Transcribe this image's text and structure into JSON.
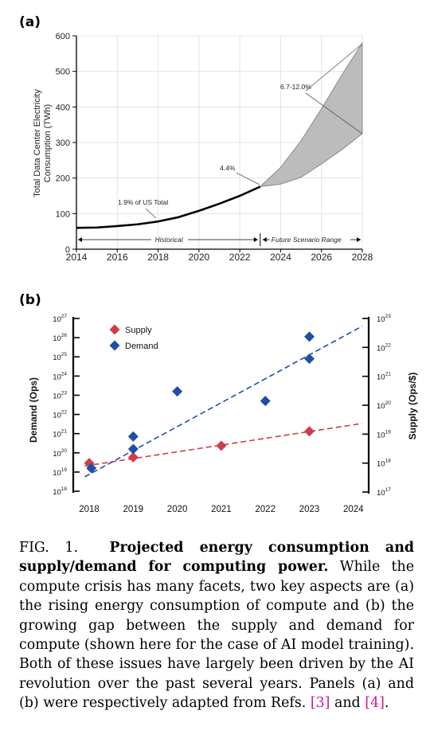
{
  "panel_a_label": "(a)",
  "panel_b_label": "(b)",
  "caption": {
    "fig_label": "FIG. 1.",
    "title": "Projected energy consumption and supply/demand for computing power.",
    "body": "While the compute crisis has many facets, two key aspects are (a) the rising energy consumption of compute and (b) the growing gap between the supply and demand for compute (shown here for the case of AI model training). Both of these issues have largely been driven by the AI revolution over the past several years. Panels (a) and (b) were respectively adapted from Refs.",
    "ref1": "[3]",
    "and_text": "and",
    "ref2": "[4]",
    "end": "."
  },
  "chart_data": [
    {
      "type": "line",
      "panel": "(a)",
      "ylabel": "Total Data Center Electricity Consumption (TWh)",
      "xlim": [
        2014,
        2028
      ],
      "ylim": [
        0,
        600
      ],
      "x_ticks": [
        "2014",
        "2016",
        "2018",
        "2020",
        "2022",
        "2024",
        "2026",
        "2028"
      ],
      "y_ticks": [
        "0",
        "100",
        "200",
        "300",
        "400",
        "500",
        "600"
      ],
      "grid": true,
      "series": [
        {
          "name": "Historical",
          "x": [
            2014,
            2015,
            2016,
            2017,
            2018,
            2019,
            2020,
            2021,
            2022,
            2023
          ],
          "y": [
            60,
            61,
            65,
            70,
            78,
            90,
            108,
            128,
            150,
            176
          ]
        }
      ],
      "range": {
        "x": [
          2023,
          2024,
          2025,
          2026,
          2027,
          2028
        ],
        "low": [
          176,
          183,
          202,
          240,
          280,
          325
        ],
        "high": [
          176,
          230,
          305,
          395,
          490,
          580
        ]
      },
      "annotations": [
        "1.9% of US Total",
        "4.4%",
        "6.7-12.0%"
      ],
      "periods": [
        "Historical",
        "Future Scenario Range"
      ]
    },
    {
      "type": "scatter",
      "panel": "(b)",
      "ylabel_left": "Demand (Ops)",
      "ylabel_right": "Supply (Ops/$)",
      "x_ticks": [
        "2018",
        "2019",
        "2020",
        "2021",
        "2022",
        "2023",
        "2024"
      ],
      "left_ticks_exp": [
        "27",
        "26",
        "25",
        "24",
        "23",
        "22",
        "21",
        "20",
        "19",
        "18"
      ],
      "right_ticks_exp": [
        "23",
        "22",
        "21",
        "20",
        "19",
        "18",
        "17"
      ],
      "left_ylim_log10": [
        18,
        27
      ],
      "right_ylim_log10": [
        17,
        23
      ],
      "legend": "top-left",
      "series": [
        {
          "name": "Supply",
          "color": "#d23b48",
          "axis": "right",
          "x": [
            2018.0,
            2019.0,
            2021.0,
            2023.0
          ],
          "y_log10": [
            18.0,
            18.2,
            18.6,
            19.1
          ],
          "trend": {
            "x": [
              2017.9,
              2024.2
            ],
            "y_log10": [
              17.9,
              19.37
            ]
          }
        },
        {
          "name": "Demand",
          "color": "#1f4fa5",
          "axis": "left",
          "x": [
            2018.05,
            2019.0,
            2019.0,
            2020.0,
            2022.0,
            2023.0,
            2023.0
          ],
          "y_log10": [
            19.2,
            20.2,
            20.85,
            23.2,
            22.7,
            24.9,
            26.05
          ],
          "trend": {
            "x": [
              2017.9,
              2024.2
            ],
            "y_log10": [
              18.75,
              26.6
            ]
          }
        }
      ]
    }
  ]
}
